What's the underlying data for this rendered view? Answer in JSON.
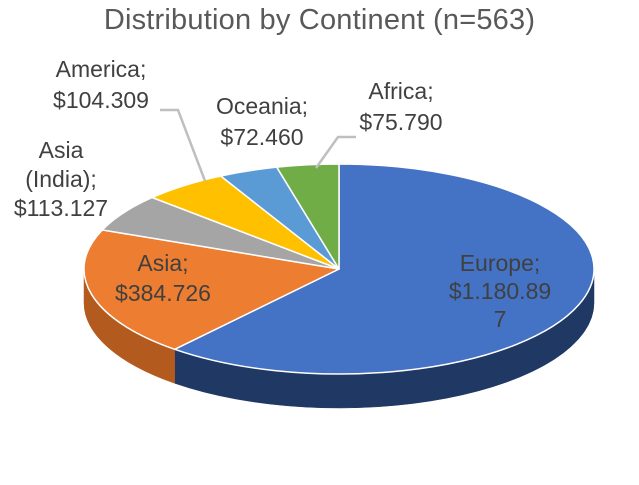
{
  "chart_data": {
    "type": "pie",
    "title": "Distribution by Continent (n=563)",
    "style": "3d",
    "slices": [
      {
        "name": "Europe",
        "value": 1180897,
        "label": [
          "Europe;",
          "$1.180.89",
          "7"
        ],
        "color": "#4472C4",
        "side_color": "#1f3864"
      },
      {
        "name": "Asia",
        "value": 384726,
        "label": [
          "Asia;",
          "$384.726"
        ],
        "color": "#ED7D31",
        "side_color": "#b35a1f"
      },
      {
        "name": "Asia (India)",
        "value": 113127,
        "label": [
          "Asia",
          "(India);",
          "$113.127"
        ],
        "color": "#A5A5A5",
        "side_color": "#7a7a7a"
      },
      {
        "name": "America",
        "value": 104309,
        "label": [
          "America;",
          "$104.309"
        ],
        "color": "#FFC000",
        "side_color": "#bf9000"
      },
      {
        "name": "Oceania",
        "value": 72460,
        "label": [
          "Oceania;",
          "$72.460"
        ],
        "color": "#5B9BD5",
        "side_color": "#2e6da4"
      },
      {
        "name": "Africa",
        "value": 75790,
        "label": [
          "Africa;",
          "$75.790"
        ],
        "color": "#70AD47",
        "side_color": "#4e7f30"
      }
    ],
    "leader_color": "#bfbfbf"
  }
}
